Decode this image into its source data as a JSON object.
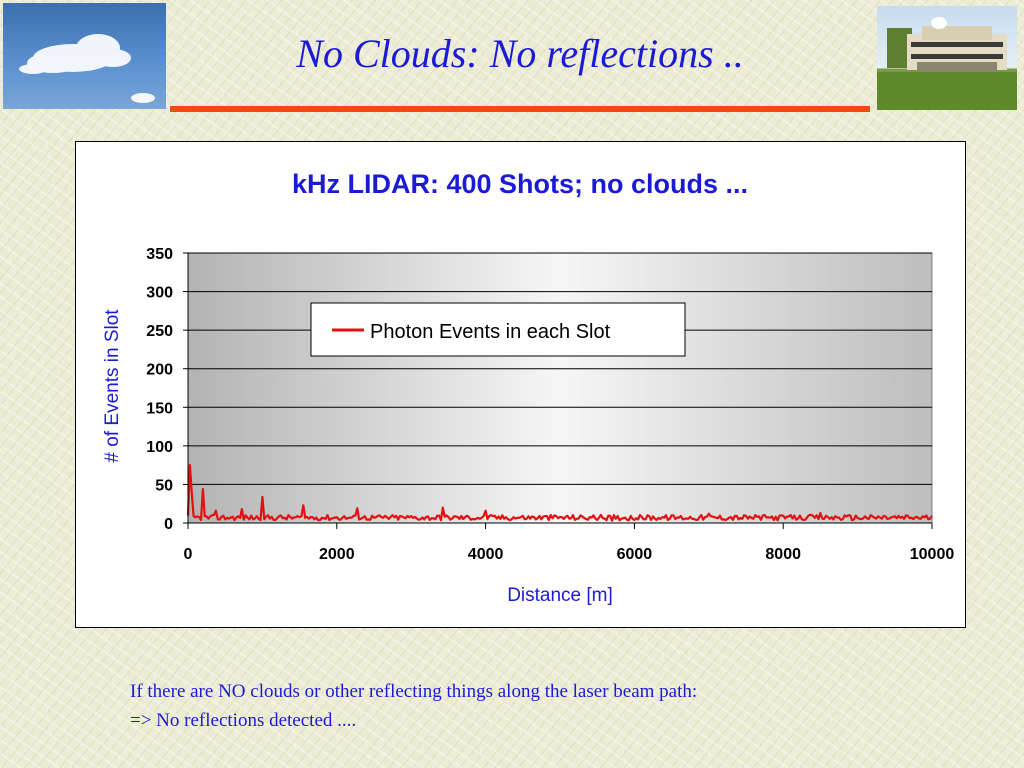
{
  "slide": {
    "title": "No Clouds: No reflections ..",
    "caption_lines": [
      "If there are NO clouds or other reflecting things along the laser beam path:",
      "=> No reflections detected ...."
    ]
  },
  "colors": {
    "title": "#1b1bd6",
    "rule": "#f04a10",
    "series": "#e41010",
    "chart_text": "#1b1bd6"
  },
  "chart_data": {
    "type": "line",
    "title": "kHz LIDAR: 400 Shots; no clouds ...",
    "xlabel": "Distance [m]",
    "ylabel": "# of Events in Slot",
    "xlim": [
      0,
      10000
    ],
    "ylim": [
      0,
      350
    ],
    "xticks": [
      "0",
      "2000",
      "4000",
      "6000",
      "8000",
      "10000"
    ],
    "yticks": [
      "0",
      "50",
      "100",
      "150",
      "200",
      "250",
      "300",
      "350"
    ],
    "grid": true,
    "legend": "top-center",
    "series": [
      {
        "name": "Photon Events in each Slot",
        "peaks": [
          {
            "x": 20,
            "y": 75
          },
          {
            "x": 60,
            "y": 40
          },
          {
            "x": 200,
            "y": 44
          },
          {
            "x": 380,
            "y": 16
          },
          {
            "x": 720,
            "y": 18
          },
          {
            "x": 1000,
            "y": 34
          },
          {
            "x": 1550,
            "y": 23
          },
          {
            "x": 2280,
            "y": 19
          },
          {
            "x": 3420,
            "y": 20
          },
          {
            "x": 4000,
            "y": 16
          },
          {
            "x": 5700,
            "y": 3
          },
          {
            "x": 7000,
            "y": 12
          },
          {
            "x": 8500,
            "y": 13
          }
        ],
        "baseline": 7
      }
    ]
  }
}
